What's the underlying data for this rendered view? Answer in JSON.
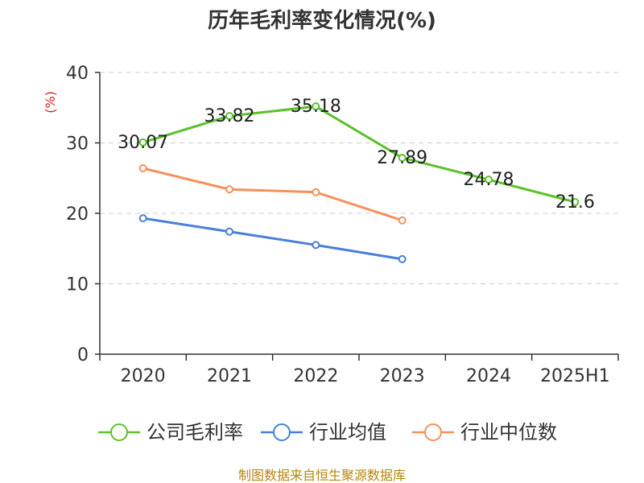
{
  "chart_data": {
    "type": "line",
    "title": "历年毛利率变化情况(%)",
    "ylabel": "(%)",
    "categories": [
      "2020",
      "2021",
      "2022",
      "2023",
      "2024",
      "2025H1"
    ],
    "ylim": [
      0,
      40
    ],
    "yticks": [
      0,
      10,
      20,
      30,
      40
    ],
    "grid": true,
    "legend_position": "bottom",
    "series": [
      {
        "name": "公司毛利率",
        "color": "#5cc22a",
        "values": [
          30.07,
          33.82,
          35.18,
          27.89,
          24.78,
          21.6
        ],
        "labels": [
          "30.07",
          "33.82",
          "35.18",
          "27.89",
          "24.78",
          "21.6"
        ]
      },
      {
        "name": "行业均值",
        "color": "#4a7fd9",
        "values": [
          19.3,
          17.4,
          15.5,
          13.5,
          null,
          null
        ]
      },
      {
        "name": "行业中位数",
        "color": "#f5915a",
        "values": [
          26.4,
          23.4,
          23.0,
          19.0,
          null,
          null
        ]
      }
    ],
    "source": "制图数据来自恒生聚源数据库"
  }
}
